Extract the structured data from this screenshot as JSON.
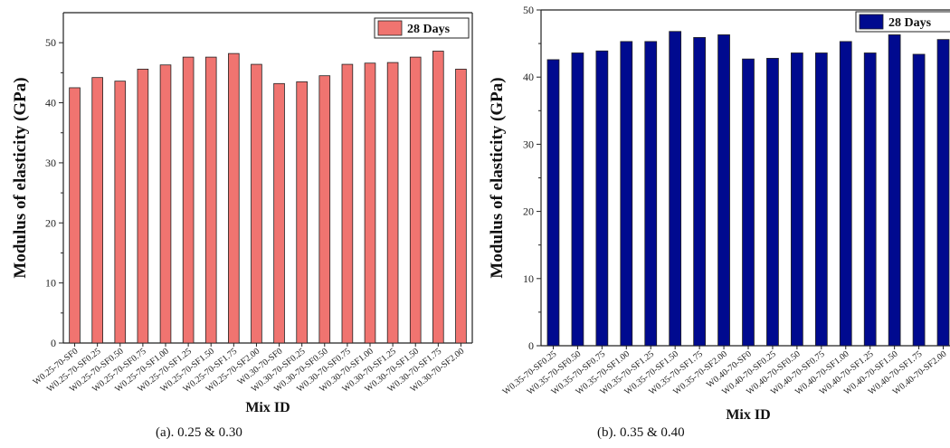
{
  "chart_data": [
    {
      "type": "bar",
      "ylabel": "Modulus of elasticity (GPa)",
      "xlabel": "Mix ID",
      "ylim": [
        0,
        55
      ],
      "yticks": [
        0,
        10,
        20,
        30,
        40,
        50
      ],
      "legend": "28 Days",
      "legend_position": "top-right",
      "bar_color": "#f07470",
      "categories": [
        "W0.25-70-SF0",
        "W0.25-70-SF0.25",
        "W0.25-70-SF0.50",
        "W0.25-70-SF0.75",
        "W0.25-70-SF1.00",
        "W0.25-70-SF1.25",
        "W0.25-70-SF1.50",
        "W0.25-70-SF1.75",
        "W0.25-70-SF2.00",
        "W0.30-70-SF0",
        "W0.30-70-SF0.25",
        "W0.30-70-SF0.50",
        "W0.30-70-SF0.75",
        "W0.30-70-SF1.00",
        "W0.30-70-SF1.25",
        "W0.30-70-SF1.50",
        "W0.30-70-SF1.75",
        "W0.30-70-SF2.00"
      ],
      "series": [
        {
          "name": "28 Days",
          "values": [
            42.5,
            44.2,
            43.6,
            45.6,
            46.3,
            47.6,
            47.6,
            48.2,
            46.4,
            43.2,
            43.5,
            44.5,
            46.4,
            46.6,
            46.7,
            47.6,
            48.6,
            45.6
          ]
        }
      ],
      "caption": "(a). 0.25 & 0.30"
    },
    {
      "type": "bar",
      "ylabel": "Modulus of elasticity (GPa)",
      "xlabel": "Mix ID",
      "ylim": [
        0,
        50
      ],
      "yticks": [
        0,
        10,
        20,
        30,
        40,
        50
      ],
      "legend": "28 Days",
      "legend_position": "top-right",
      "bar_color": "#000a8f",
      "categories": [
        "W0.35-70-SF0.25",
        "W0.35-70-SF0.50",
        "W0.35-70-SF0.75",
        "W0.35-70-SF1.00",
        "W0.35-70-SF1.25",
        "W0.35-70-SF1.50",
        "W0.35-70-SF1.75",
        "W0.35-70-SF2.00",
        "W0.40-70-SF0",
        "W0.40-70-SF0.25",
        "W0.40-70-SF0.50",
        "W0.40-70-SF0.75",
        "W0.40-70-SF1.00",
        "W0.40-70-SF1.25",
        "W0.40-70-SF1.50",
        "W0.40-70-SF1.75",
        "W0.40-70-SF2.00"
      ],
      "series": [
        {
          "name": "28 Days",
          "values": [
            42.6,
            43.6,
            43.9,
            45.3,
            45.3,
            46.8,
            45.9,
            46.3,
            42.7,
            42.8,
            43.6,
            43.6,
            45.3,
            43.6,
            46.3,
            43.4,
            45.6
          ]
        }
      ],
      "caption": "(b). 0.35 & 0.40"
    }
  ]
}
